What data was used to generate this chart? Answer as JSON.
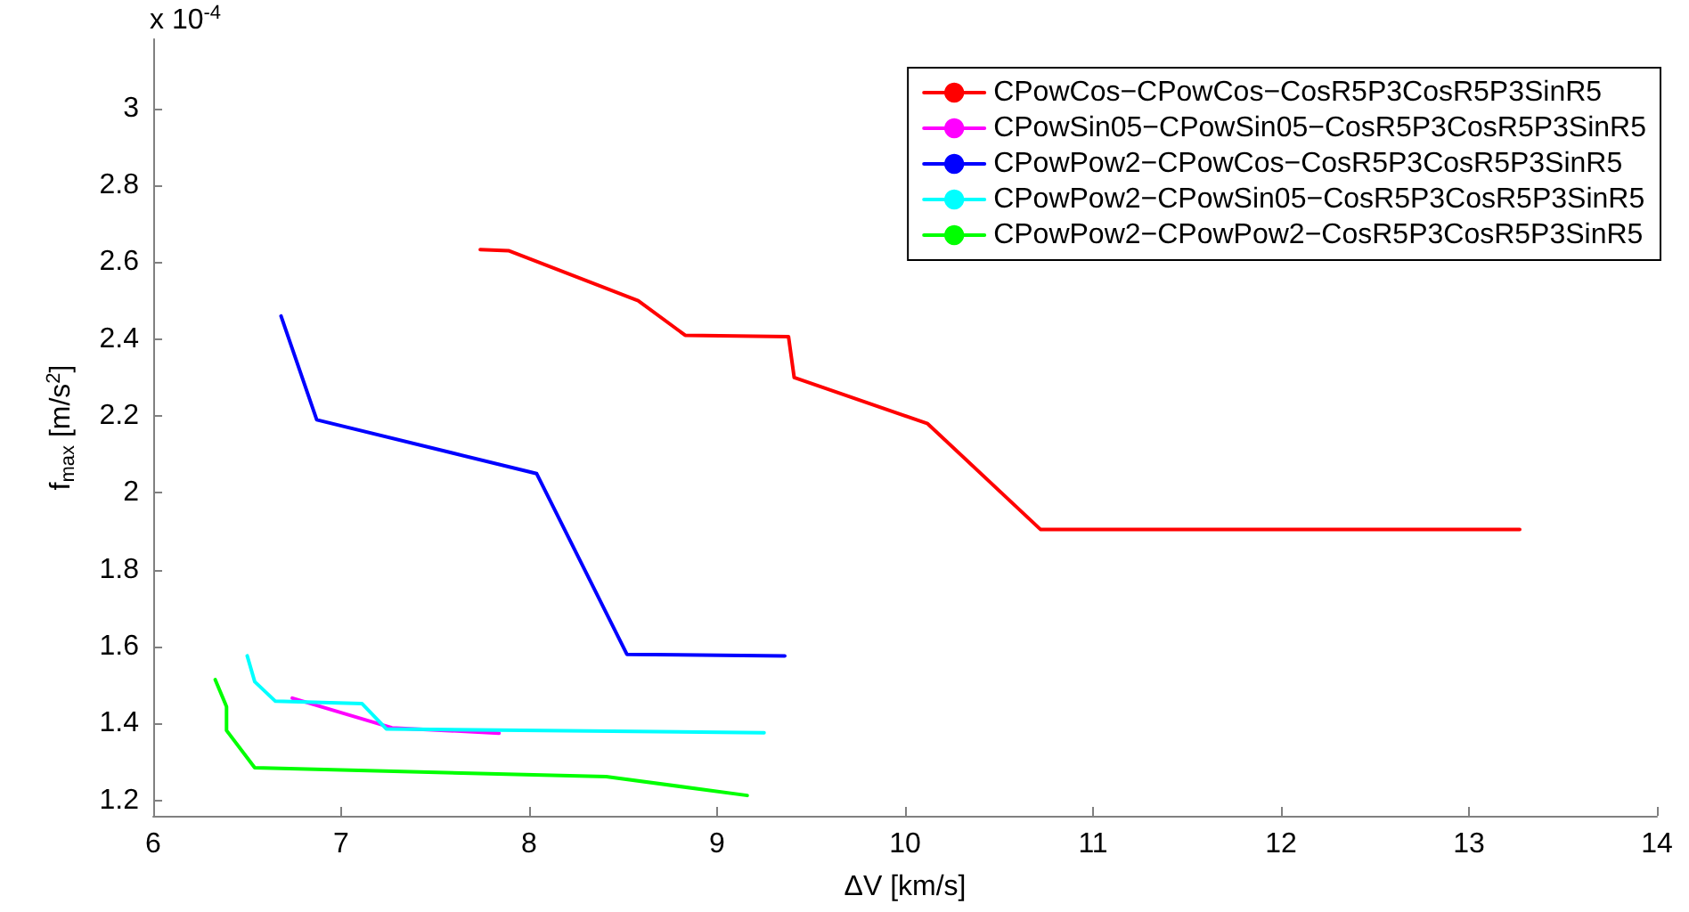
{
  "chart_data": {
    "type": "line",
    "xlabel": "ΔV [km/s]",
    "ylabel": "f$_{max}$ [m/s$^{2}$]",
    "annotations": [
      "x 10$^{-4}$"
    ],
    "xlim": [
      6,
      14
    ],
    "xticks": [
      6,
      7,
      8,
      9,
      10,
      11,
      12,
      13,
      14
    ],
    "ylim": [
      1.16,
      3.18
    ],
    "yticks": [
      1.2,
      1.4,
      1.6,
      1.8,
      2,
      2.2,
      2.4,
      2.6,
      2.8,
      3
    ],
    "legend": "top right",
    "marker": "none",
    "line_style": "solid",
    "series": [
      {
        "name": "CPowCos−CPowCos−CosR5P3CosR5P3SinR5",
        "color": "#ff0000",
        "x": [
          7.74,
          7.89,
          8.58,
          8.83,
          9.38,
          9.41,
          10.12,
          10.72,
          13.27
        ],
        "values": [
          2.633,
          2.63,
          2.5,
          2.41,
          2.406,
          2.3,
          2.18,
          1.905,
          1.905
        ]
      },
      {
        "name": "CPowSin05−CPowSin05−CosR5P3CosR5P3SinR5",
        "color": "#ff00ff",
        "x": [
          6.74,
          7.27,
          7.84
        ],
        "values": [
          1.466,
          1.389,
          1.375
        ]
      },
      {
        "name": "CPowPow2−CPowCos−CosR5P3CosR5P3SinR5",
        "color": "#0000ff",
        "x": [
          6.68,
          6.87,
          8.04,
          8.52,
          9.36
        ],
        "values": [
          2.46,
          2.19,
          2.05,
          1.58,
          1.576
        ]
      },
      {
        "name": "CPowPow2−CPowSin05−CosR5P3CosR5P3SinR5",
        "color": "#00ffff",
        "x": [
          6.5,
          6.54,
          6.65,
          7.11,
          7.24,
          9.25
        ],
        "values": [
          1.576,
          1.509,
          1.458,
          1.452,
          1.386,
          1.376
        ]
      },
      {
        "name": "CPowPow2−CPowPow2−CosR5P3CosR5P3SinR5",
        "color": "#00ff00",
        "x": [
          6.33,
          6.39,
          6.39,
          6.54,
          8.41,
          9.16
        ],
        "values": [
          1.514,
          1.444,
          1.382,
          1.285,
          1.262,
          1.213
        ]
      }
    ]
  }
}
